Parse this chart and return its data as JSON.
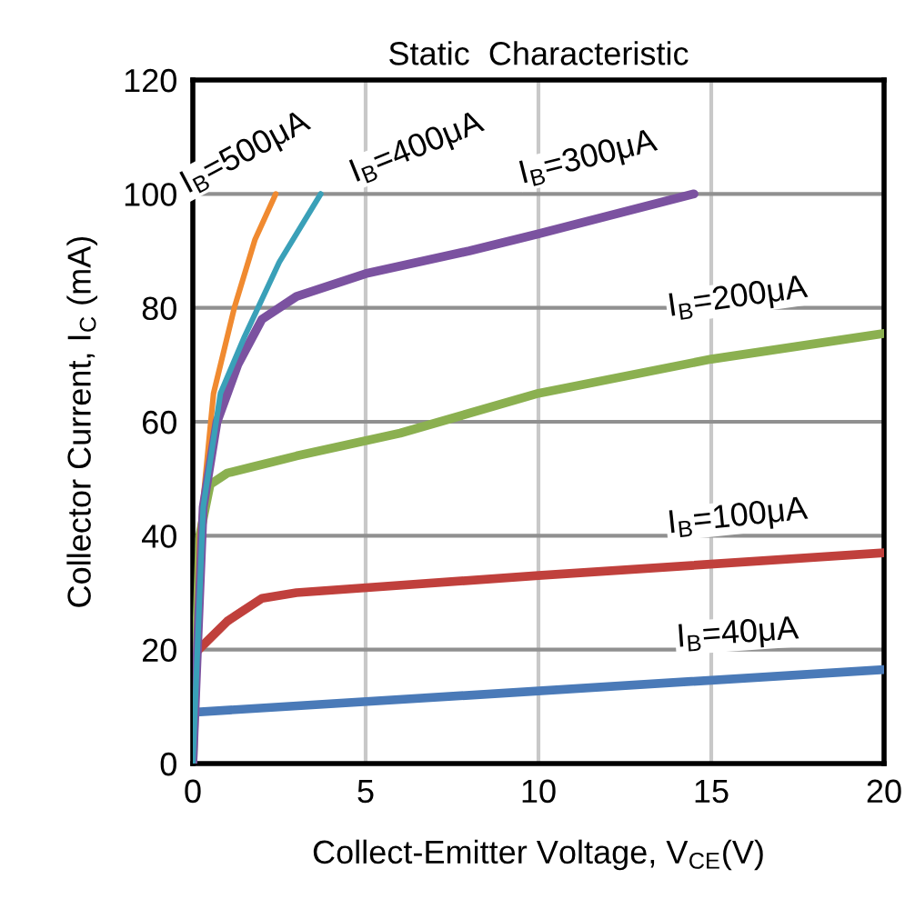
{
  "chart_data": {
    "type": "line",
    "title": "Static  Characteristic",
    "xlabel": "Collect-Emitter Voltage, V$_{CE}$(V)",
    "ylabel": "Collector Current, I$_{C}$ (mA)",
    "xlim": [
      0,
      20
    ],
    "xticks": [
      0,
      5,
      10,
      15,
      20
    ],
    "ylim": [
      0,
      120
    ],
    "yticks": [
      0,
      20,
      40,
      60,
      80,
      100,
      120
    ],
    "grid": true,
    "legend": false,
    "marker": "none",
    "line_style": "solid",
    "series": [
      {
        "name": "I$_{B}$=500μA",
        "color": "#f08a30",
        "x": [
          0,
          0.2,
          0.6,
          1.2,
          1.8,
          2.4
        ],
        "values": [
          0,
          40,
          65,
          80,
          92,
          100
        ]
      },
      {
        "name": "I$_{B}$=400μA",
        "color": "#3aa0b8",
        "x": [
          0,
          0.3,
          0.8,
          1.5,
          2.5,
          3.7
        ],
        "values": [
          0,
          45,
          65,
          75,
          88,
          100
        ]
      },
      {
        "name": "I$_{B}$=300μA",
        "color": "#7b52a0",
        "x": [
          0,
          0.3,
          0.7,
          1.3,
          2,
          3,
          5,
          8,
          10,
          14.5
        ],
        "values": [
          0,
          45,
          60,
          70,
          78,
          82,
          86,
          90,
          93,
          100
        ]
      },
      {
        "name": "I$_{B}$=200μA",
        "color": "#8bb050",
        "x": [
          0,
          0.2,
          0.5,
          1,
          3,
          6,
          10,
          15,
          20
        ],
        "values": [
          0,
          40,
          49,
          51,
          54,
          58,
          65,
          71,
          75.5
        ]
      },
      {
        "name": "I$_{B}$=100μA",
        "color": "#c0403c",
        "x": [
          0,
          0,
          1,
          2,
          3,
          10,
          20
        ],
        "values": [
          0,
          19,
          25,
          29,
          30,
          33,
          37
        ]
      },
      {
        "name": "I$_{B}$=40μA",
        "color": "#4a7ab8",
        "x": [
          0,
          0,
          20
        ],
        "values": [
          0,
          9,
          16.5
        ]
      }
    ]
  }
}
